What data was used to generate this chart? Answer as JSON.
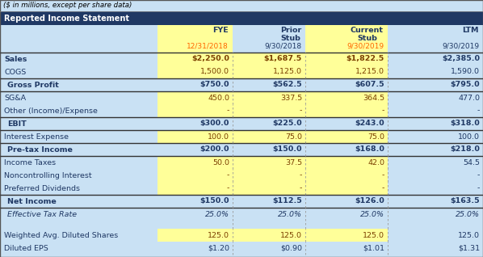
{
  "title_note": "($ in millions, except per share data)",
  "section_header": "Reported Income Statement",
  "col_headers_line1": [
    "FYE",
    "Prior\nStub",
    "Current\nStub",
    "LTM"
  ],
  "col_headers_line2": [
    "12/31/2018",
    "9/30/2018",
    "9/30/2019",
    "9/30/2019"
  ],
  "date_bg": [
    true,
    false,
    true,
    false
  ],
  "rows": [
    {
      "label": "Sales",
      "bold": true,
      "italic": false,
      "border_top": true,
      "border_bottom": false,
      "values": [
        "$2,250.0",
        "$1,687.5",
        "$1,822.5",
        "$2,385.0"
      ],
      "yellow": [
        true,
        true,
        true,
        false
      ]
    },
    {
      "label": "COGS",
      "bold": false,
      "italic": false,
      "border_top": false,
      "border_bottom": false,
      "values": [
        "1,500.0",
        "1,125.0",
        "1,215.0",
        "1,590.0"
      ],
      "yellow": [
        true,
        true,
        true,
        false
      ]
    },
    {
      "label": "  Gross Profit",
      "bold": true,
      "italic": false,
      "border_top": true,
      "border_bottom": true,
      "values": [
        "$750.0",
        "$562.5",
        "$607.5",
        "$795.0"
      ],
      "yellow": [
        false,
        false,
        false,
        false
      ]
    },
    {
      "label": "SG&A",
      "bold": false,
      "italic": false,
      "border_top": false,
      "border_bottom": false,
      "values": [
        "450.0",
        "337.5",
        "364.5",
        "477.0"
      ],
      "yellow": [
        true,
        true,
        true,
        false
      ]
    },
    {
      "label": "Other (Income)/Expense",
      "bold": false,
      "italic": false,
      "border_top": false,
      "border_bottom": false,
      "values": [
        "-",
        "-",
        "-",
        "-"
      ],
      "yellow": [
        true,
        true,
        true,
        false
      ]
    },
    {
      "label": "  EBIT",
      "bold": true,
      "italic": false,
      "border_top": true,
      "border_bottom": true,
      "values": [
        "$300.0",
        "$225.0",
        "$243.0",
        "$318.0"
      ],
      "yellow": [
        false,
        false,
        false,
        false
      ]
    },
    {
      "label": "Interest Expense",
      "bold": false,
      "italic": false,
      "border_top": false,
      "border_bottom": false,
      "values": [
        "100.0",
        "75.0",
        "75.0",
        "100.0"
      ],
      "yellow": [
        true,
        true,
        true,
        false
      ]
    },
    {
      "label": "  Pre-tax Income",
      "bold": true,
      "italic": false,
      "border_top": true,
      "border_bottom": true,
      "values": [
        "$200.0",
        "$150.0",
        "$168.0",
        "$218.0"
      ],
      "yellow": [
        false,
        false,
        false,
        false
      ]
    },
    {
      "label": "Income Taxes",
      "bold": false,
      "italic": false,
      "border_top": false,
      "border_bottom": false,
      "values": [
        "50.0",
        "37.5",
        "42.0",
        "54.5"
      ],
      "yellow": [
        true,
        true,
        true,
        false
      ]
    },
    {
      "label": "Noncontrolling Interest",
      "bold": false,
      "italic": false,
      "border_top": false,
      "border_bottom": false,
      "values": [
        "-",
        "-",
        "-",
        "-"
      ],
      "yellow": [
        true,
        true,
        true,
        false
      ]
    },
    {
      "label": "Preferred Dividends",
      "bold": false,
      "italic": false,
      "border_top": false,
      "border_bottom": false,
      "values": [
        "-",
        "-",
        "-",
        "-"
      ],
      "yellow": [
        true,
        true,
        true,
        false
      ]
    },
    {
      "label": "  Net Income",
      "bold": true,
      "italic": false,
      "border_top": true,
      "border_bottom": true,
      "values": [
        "$150.0",
        "$112.5",
        "$126.0",
        "$163.5"
      ],
      "yellow": [
        false,
        false,
        false,
        false
      ]
    },
    {
      "label": "  Effective Tax Rate",
      "bold": false,
      "italic": true,
      "border_top": false,
      "border_bottom": false,
      "values": [
        "25.0%",
        "25.0%",
        "25.0%",
        "25.0%"
      ],
      "yellow": [
        false,
        false,
        false,
        false
      ]
    },
    {
      "label": "",
      "bold": false,
      "italic": false,
      "border_top": false,
      "border_bottom": false,
      "values": [
        "",
        "",
        "",
        ""
      ],
      "yellow": [
        false,
        false,
        false,
        false
      ]
    },
    {
      "label": "Weighted Avg. Diluted Shares",
      "bold": false,
      "italic": false,
      "border_top": false,
      "border_bottom": false,
      "values": [
        "125.0",
        "125.0",
        "125.0",
        "125.0"
      ],
      "yellow": [
        true,
        true,
        true,
        false
      ]
    },
    {
      "label": "Diluted EPS",
      "bold": false,
      "italic": false,
      "border_top": false,
      "border_bottom": false,
      "values": [
        "$1.20",
        "$0.90",
        "$1.01",
        "$1.31"
      ],
      "yellow": [
        false,
        false,
        false,
        false
      ]
    }
  ],
  "colors": {
    "header_bg": "#1F3864",
    "header_text": "#FFFFFF",
    "yellow_bg": "#FFFF99",
    "light_blue_bg": "#C9E1F4",
    "text_dark": "#1F3864",
    "text_yellow_cell": "#7B3F00",
    "border_color": "#333333",
    "dashed_color": "#999999",
    "date_highlight": "#FFFF99",
    "orange_date": "#FF6600"
  }
}
